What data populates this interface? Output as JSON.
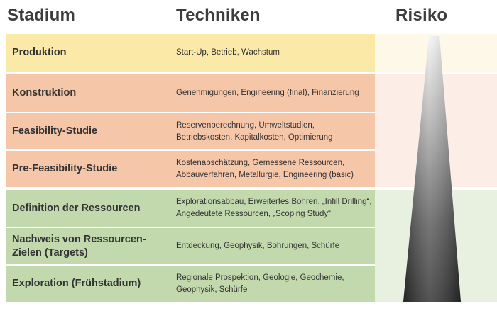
{
  "headers": {
    "stadium": "Stadium",
    "techniken": "Techniken",
    "risiko": "Risiko"
  },
  "colors": {
    "production": "#fbe9a8",
    "production_light": "#fef8e8",
    "development": "#f6c6a8",
    "development_light": "#fcede6",
    "exploration": "#c2d8ad",
    "exploration_light": "#e8f0e0",
    "text": "#333333"
  },
  "rows": [
    {
      "stage": "Produktion",
      "techniques": "Start-Up, Betrieb, Wachstum"
    },
    {
      "stage": "Konstruktion",
      "techniques": "Genehmigungen, Engineering (final), Finanzierung"
    },
    {
      "stage": "Feasibility-Studie",
      "techniques": "Reservenberechnung, Umweltstudien, Betriebskosten, Kapitalkosten,  Optimierung"
    },
    {
      "stage": "Pre-Feasibility-Studie",
      "techniques": "Kostenabschätzung, Gemessene Ressourcen, Abbauverfahren, Metallurgie, Engineering (basic)"
    },
    {
      "stage": "Definition der Ressourcen",
      "techniques": "Explorationsabbau, Erweitertes Bohren, „Infill Drilling“, Angedeutete Ressourcen, „Scoping Study“"
    },
    {
      "stage": "Nachweis von Ressourcen-Zielen (Targets)",
      "techniques": "Entdeckung, Geophysik, Bohrungen, Schürfe"
    },
    {
      "stage": "Exploration (Frühstadium)",
      "techniques": "Regionale Prospektion, Geologie, Geochemie, Geophysik, Schürfe"
    }
  ]
}
